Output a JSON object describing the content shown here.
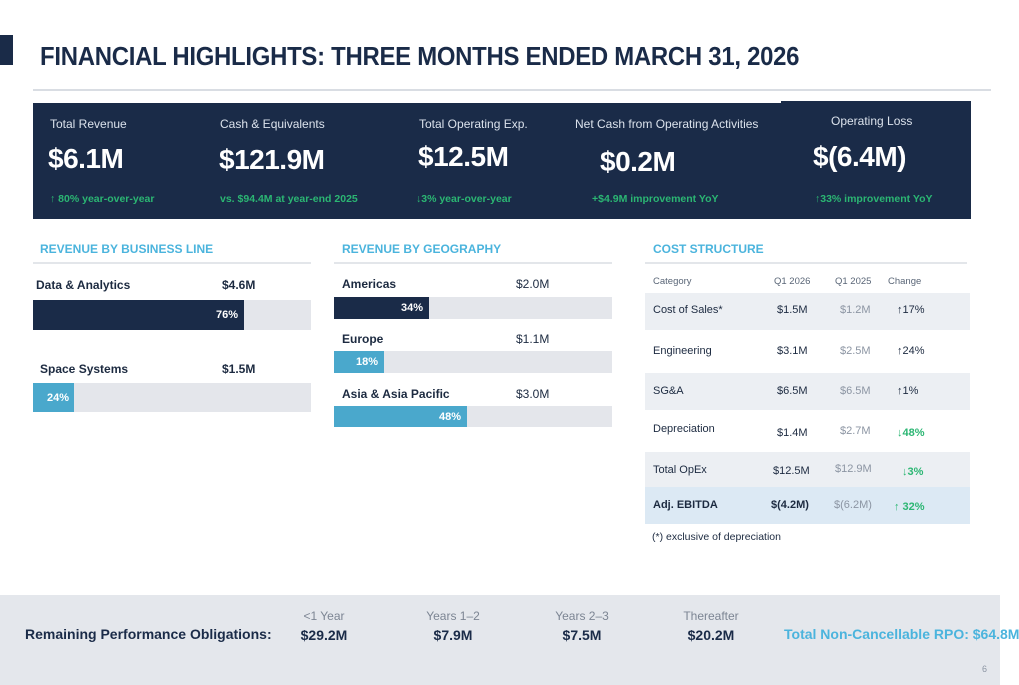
{
  "title": "FINANCIAL HIGHLIGHTS: THREE MONTHS ENDED MARCH 31, 2026",
  "kpis": [
    {
      "label": "Total Revenue",
      "value": "$6.1M",
      "note": "↑ 80% year-over-year"
    },
    {
      "label": "Cash & Equivalents",
      "value": "$121.9M",
      "note": "vs. $94.4M at year-end 2025"
    },
    {
      "label": "Total Operating Exp.",
      "value": "$12.5M",
      "note": "↓3% year-over-year"
    },
    {
      "label": "Net Cash from Operating Activities",
      "value": "$0.2M",
      "note": "+$4.9M improvement YoY"
    },
    {
      "label": "Operating Loss",
      "value": "$(6.4M)",
      "note": "↑33% improvement YoY"
    }
  ],
  "revenue_business": {
    "title": "REVENUE BY BUSINESS LINE",
    "items": [
      {
        "label": "Data & Analytics",
        "value": "$4.6M",
        "pct": 76,
        "pct_label": "76%"
      },
      {
        "label": "Space Systems",
        "value": "$1.5M",
        "pct": 24,
        "pct_label": "24%"
      }
    ]
  },
  "revenue_geo": {
    "title": "REVENUE BY GEOGRAPHY",
    "items": [
      {
        "label": "Americas",
        "value": "$2.0M",
        "pct": 34,
        "pct_label": "34%"
      },
      {
        "label": "Europe",
        "value": "$1.1M",
        "pct": 18,
        "pct_label": "18%"
      },
      {
        "label": "Asia & Asia Pacific",
        "value": "$3.0M",
        "pct": 48,
        "pct_label": "48%"
      }
    ]
  },
  "cost_structure": {
    "title": "COST STRUCTURE",
    "headers": {
      "category": "Category",
      "q1_2026": "Q1 2026",
      "q1_2025": "Q1 2025",
      "change": "Change"
    },
    "rows": [
      {
        "category": "Cost of Sales*",
        "q1_2026": "$1.5M",
        "q1_2025": "$1.2M",
        "change": "↑17%"
      },
      {
        "category": "Engineering",
        "q1_2026": "$3.1M",
        "q1_2025": "$2.5M",
        "change": "↑24%"
      },
      {
        "category": "SG&A",
        "q1_2026": "$6.5M",
        "q1_2025": "$6.5M",
        "change": "↑1%"
      },
      {
        "category": "Depreciation",
        "q1_2026": "$1.4M",
        "q1_2025": "$2.7M",
        "change": "↓48%"
      },
      {
        "category": "Total OpEx",
        "q1_2026": "$12.5M",
        "q1_2025": "$12.9M",
        "change": "↓3%"
      },
      {
        "category": "Adj. EBITDA",
        "q1_2026": "$(4.2M)",
        "q1_2025": "$(6.2M)",
        "change": "↑ 32%"
      }
    ],
    "footnote": "(*) exclusive of depreciation"
  },
  "rpo": {
    "title": "Remaining Performance Obligations:",
    "periods": [
      {
        "label": "<1 Year",
        "value": "$29.2M"
      },
      {
        "label": "Years 1–2",
        "value": "$7.9M"
      },
      {
        "label": "Years 2–3",
        "value": "$7.5M"
      },
      {
        "label": "Thereafter",
        "value": "$20.2M"
      }
    ],
    "total": "Total Non-Cancellable RPO: $64.8M"
  },
  "page_number": "6",
  "colors": {
    "navy": "#1a2b48",
    "teal": "#4aa8cc",
    "accent_text": "#4bb4dd",
    "positive": "#2bb673"
  }
}
